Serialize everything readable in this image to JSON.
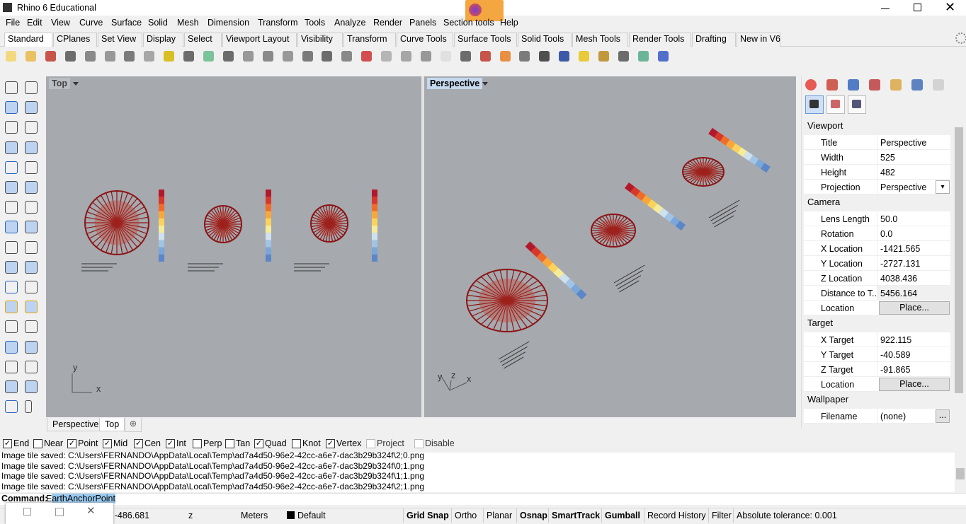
{
  "window": {
    "title": "Rhino 6 Educational"
  },
  "menu": [
    "File",
    "Edit",
    "View",
    "Curve",
    "Surface",
    "Solid",
    "Mesh",
    "Dimension",
    "Transform",
    "Tools",
    "Analyze",
    "Render",
    "Panels",
    "Section tools",
    "Help"
  ],
  "tabs": [
    "Standard",
    "CPlanes",
    "Set View",
    "Display",
    "Select",
    "Viewport Layout",
    "Visibility",
    "Transform",
    "Curve Tools",
    "Surface Tools",
    "Solid Tools",
    "Mesh Tools",
    "Render Tools",
    "Drafting",
    "New in V6"
  ],
  "viewports": [
    {
      "title": "Top",
      "axes": [
        "x",
        "y"
      ]
    },
    {
      "title": "Perspective",
      "axes": [
        "y",
        "z",
        "x"
      ]
    }
  ],
  "viewport_tabs": [
    "Perspective",
    "Top"
  ],
  "panel": {
    "sections": [
      {
        "title": "Viewport",
        "rows": [
          [
            "Title",
            "Perspective"
          ],
          [
            "Width",
            "525"
          ],
          [
            "Height",
            "482"
          ],
          [
            "Projection",
            "Perspective"
          ]
        ]
      },
      {
        "title": "Camera",
        "rows": [
          [
            "Lens Length",
            "50.0"
          ],
          [
            "Rotation",
            "0.0"
          ],
          [
            "X Location",
            "-1421.565"
          ],
          [
            "Y Location",
            "-2727.131"
          ],
          [
            "Z Location",
            "4038.436"
          ],
          [
            "Distance to T...",
            "5456.164"
          ],
          [
            "Location",
            "Place..."
          ]
        ]
      },
      {
        "title": "Target",
        "rows": [
          [
            "X Target",
            "922.115"
          ],
          [
            "Y Target",
            "-40.589"
          ],
          [
            "Z Target",
            "-91.865"
          ],
          [
            "Location",
            "Place..."
          ]
        ]
      },
      {
        "title": "Wallpaper",
        "rows": [
          [
            "Filename",
            "(none)"
          ]
        ]
      }
    ],
    "browse": "..."
  },
  "osnaps": [
    {
      "label": "End",
      "checked": true,
      "enabled": true
    },
    {
      "label": "Near",
      "checked": false,
      "enabled": true
    },
    {
      "label": "Point",
      "checked": true,
      "enabled": true
    },
    {
      "label": "Mid",
      "checked": true,
      "enabled": true
    },
    {
      "label": "Cen",
      "checked": true,
      "enabled": true
    },
    {
      "label": "Int",
      "checked": true,
      "enabled": true
    },
    {
      "label": "Perp",
      "checked": false,
      "enabled": true
    },
    {
      "label": "Tan",
      "checked": false,
      "enabled": true
    },
    {
      "label": "Quad",
      "checked": true,
      "enabled": true
    },
    {
      "label": "Knot",
      "checked": false,
      "enabled": true
    },
    {
      "label": "Vertex",
      "checked": true,
      "enabled": true
    },
    {
      "label": "Project",
      "checked": false,
      "enabled": false
    },
    {
      "label": "Disable",
      "checked": false,
      "enabled": false
    }
  ],
  "history": [
    "Image tile saved: C:\\Users\\FERNANDO\\AppData\\Local\\Temp\\ad7a4d50-96e2-42cc-a6e7-dac3b29b324f\\2;0.png",
    "Image tile saved: C:\\Users\\FERNANDO\\AppData\\Local\\Temp\\ad7a4d50-96e2-42cc-a6e7-dac3b29b324f\\0;1.png",
    "Image tile saved: C:\\Users\\FERNANDO\\AppData\\Local\\Temp\\ad7a4d50-96e2-42cc-a6e7-dac3b29b324f\\1;1.png",
    "Image tile saved: C:\\Users\\FERNANDO\\AppData\\Local\\Temp\\ad7a4d50-96e2-42cc-a6e7-dac3b29b324f\\2;1.png"
  ],
  "command": {
    "prompt": "Command:",
    "text": "EarthAnchorPoint"
  },
  "status": {
    "coordinate": "y -486.681",
    "z": "z",
    "units": "Meters",
    "layer": "Default",
    "toggles": [
      {
        "label": "Grid Snap",
        "active": true
      },
      {
        "label": "Ortho",
        "active": false
      },
      {
        "label": "Planar",
        "active": false
      },
      {
        "label": "Osnap",
        "active": true
      },
      {
        "label": "SmartTrack",
        "active": true
      },
      {
        "label": "Gumball",
        "active": true
      },
      {
        "label": "Record History",
        "active": false
      },
      {
        "label": "Filter",
        "active": false
      }
    ],
    "tolerance": "Absolute tolerance: 0.001"
  }
}
